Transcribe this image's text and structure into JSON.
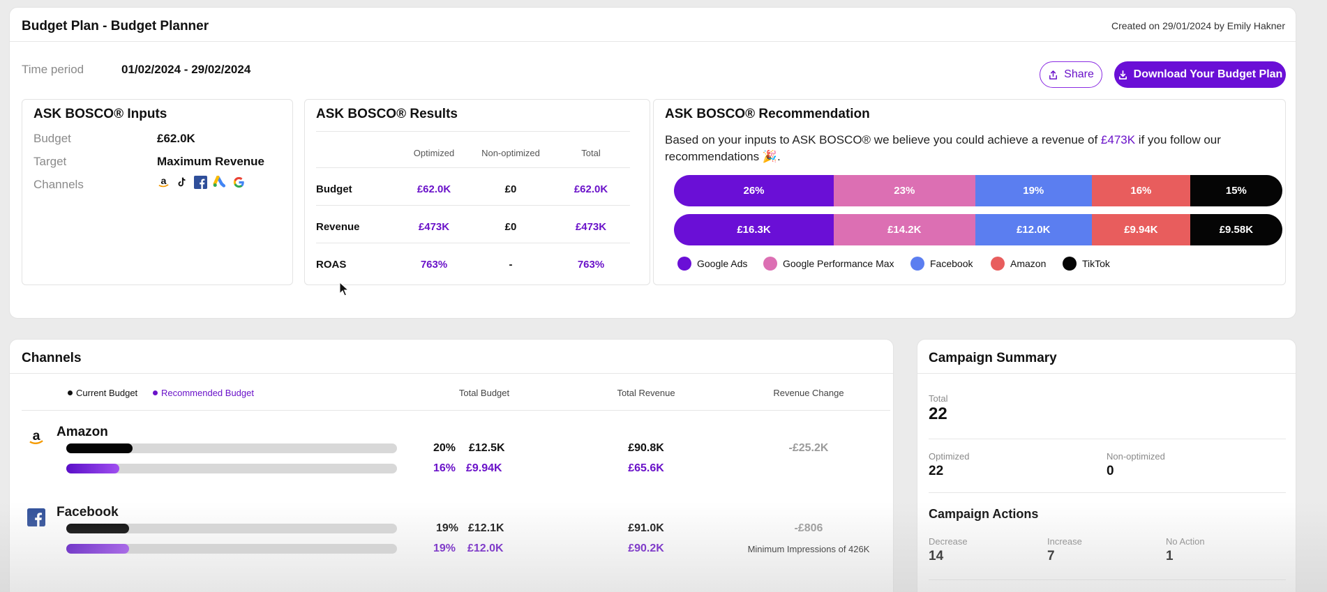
{
  "header": {
    "title": "Budget Plan - Budget Planner",
    "created": "Created on 29/01/2024 by Emily Hakner"
  },
  "time_period": {
    "label": "Time period",
    "value": "01/02/2024 - 29/02/2024"
  },
  "actions": {
    "share_label": "Share",
    "download_label": "Download Your Budget Plan"
  },
  "inputs": {
    "title": "ASK BOSCO® Inputs",
    "budget_label": "Budget",
    "budget_value": "£62.0K",
    "target_label": "Target",
    "target_value": "Maximum Revenue",
    "channels_label": "Channels",
    "channel_icons": [
      "amazon-icon",
      "tiktok-icon",
      "facebook-icon",
      "google-ads-icon",
      "google-icon"
    ]
  },
  "results": {
    "title": "ASK BOSCO® Results",
    "columns": [
      "Optimized",
      "Non-optimized",
      "Total"
    ],
    "rows": [
      {
        "label": "Budget",
        "optimized": "£62.0K",
        "non_optimized": "£0",
        "total": "£62.0K"
      },
      {
        "label": "Revenue",
        "optimized": "£473K",
        "non_optimized": "£0",
        "total": "£473K"
      },
      {
        "label": "ROAS",
        "optimized": "763%",
        "non_optimized": "-",
        "total": "763%"
      }
    ]
  },
  "recommendation": {
    "title": "ASK BOSCO® Recommendation",
    "text_before": "Based on your inputs to ASK BOSCO® we believe you could achieve a revenue of ",
    "highlight": "£473K",
    "text_after": " if you follow our recommendations 🎉.",
    "percent_bar": [
      {
        "label": "26%",
        "share": 26,
        "color": "#6a0fd6"
      },
      {
        "label": "23%",
        "share": 23,
        "color": "#dc6fb3"
      },
      {
        "label": "19%",
        "share": 19,
        "color": "#5b7ef0"
      },
      {
        "label": "16%",
        "share": 16,
        "color": "#e85d5d"
      },
      {
        "label": "15%",
        "share": 15,
        "color": "#050505"
      }
    ],
    "value_bar": [
      {
        "label": "£16.3K",
        "share": 26,
        "color": "#6a0fd6"
      },
      {
        "label": "£14.2K",
        "share": 23,
        "color": "#dc6fb3"
      },
      {
        "label": "£12.0K",
        "share": 19,
        "color": "#5b7ef0"
      },
      {
        "label": "£9.94K",
        "share": 16,
        "color": "#e85d5d"
      },
      {
        "label": "£9.58K",
        "share": 15,
        "color": "#050505"
      }
    ],
    "legend": [
      {
        "name": "Google Ads",
        "color": "#6a0fd6"
      },
      {
        "name": "Google Performance Max",
        "color": "#dc6fb3"
      },
      {
        "name": "Facebook",
        "color": "#5b7ef0"
      },
      {
        "name": "Amazon",
        "color": "#e85d5d"
      },
      {
        "name": "TikTok",
        "color": "#050505"
      }
    ]
  },
  "channels": {
    "title": "Channels",
    "legend_current": "Current Budget",
    "legend_recommended": "Recommended Budget",
    "col_total_budget": "Total Budget",
    "col_total_revenue": "Total Revenue",
    "col_revenue_change": "Revenue Change",
    "rows": [
      {
        "name": "Amazon",
        "icon": "amazon-icon",
        "current_pct": "20%",
        "current_budget": "£12.5K",
        "current_fill": 0.2,
        "rec_pct": "16%",
        "rec_budget": "£9.94K",
        "rec_fill": 0.16,
        "current_revenue": "£90.8K",
        "rec_revenue": "£65.6K",
        "revenue_change": "-£25.2K",
        "note": ""
      },
      {
        "name": "Facebook",
        "icon": "facebook-icon",
        "current_pct": "19%",
        "current_budget": "£12.1K",
        "current_fill": 0.19,
        "rec_pct": "19%",
        "rec_budget": "£12.0K",
        "rec_fill": 0.19,
        "current_revenue": "£91.0K",
        "rec_revenue": "£90.2K",
        "revenue_change": "-£806",
        "note": "Minimum Impressions of 426K"
      }
    ]
  },
  "campaign_summary": {
    "title": "Campaign Summary",
    "total_label": "Total",
    "total_value": "22",
    "optimized_label": "Optimized",
    "optimized_value": "22",
    "non_optimized_label": "Non-optimized",
    "non_optimized_value": "0",
    "actions_title": "Campaign Actions",
    "decrease_label": "Decrease",
    "decrease_value": "14",
    "increase_label": "Increase",
    "increase_value": "7",
    "no_action_label": "No Action",
    "no_action_value": "1"
  }
}
